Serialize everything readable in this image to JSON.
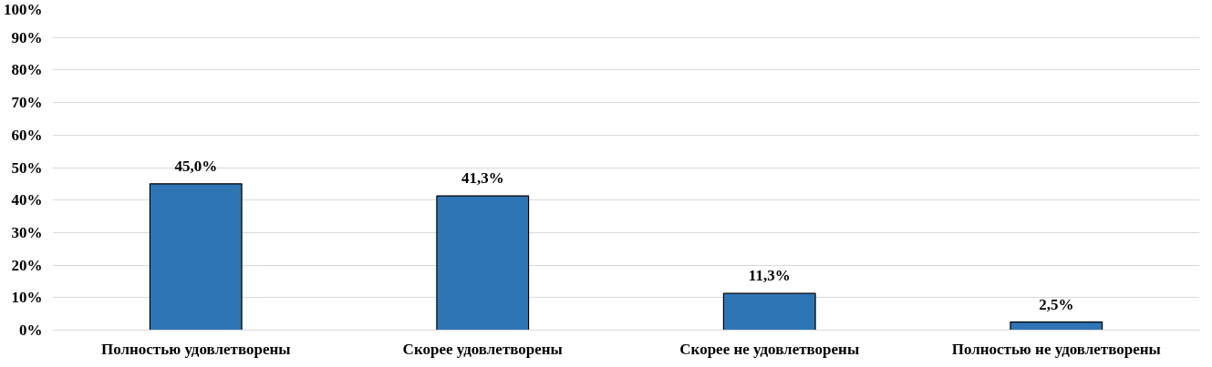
{
  "chart_data": {
    "type": "bar",
    "categories": [
      "Полностью удовлетворены",
      "Скорее удовлетворены",
      "Скорее не удовлетворены",
      "Полностью не удовлетворены"
    ],
    "values": [
      45.0,
      41.3,
      11.3,
      2.5
    ],
    "value_labels": [
      "45,0%",
      "41,3%",
      "11,3%",
      "2,5%"
    ],
    "color": "#2e75b6",
    "ylim": [
      0,
      100
    ],
    "yticks": [
      {
        "value": 0,
        "label": "0%"
      },
      {
        "value": 10,
        "label": "10%"
      },
      {
        "value": 20,
        "label": "20%"
      },
      {
        "value": 30,
        "label": "30%"
      },
      {
        "value": 40,
        "label": "40%"
      },
      {
        "value": 50,
        "label": "50%"
      },
      {
        "value": 60,
        "label": "60%"
      },
      {
        "value": 70,
        "label": "70%"
      },
      {
        "value": 80,
        "label": "80%"
      },
      {
        "value": 90,
        "label": "90%"
      },
      {
        "value": 100,
        "label": "100%"
      }
    ],
    "grid": "y"
  }
}
